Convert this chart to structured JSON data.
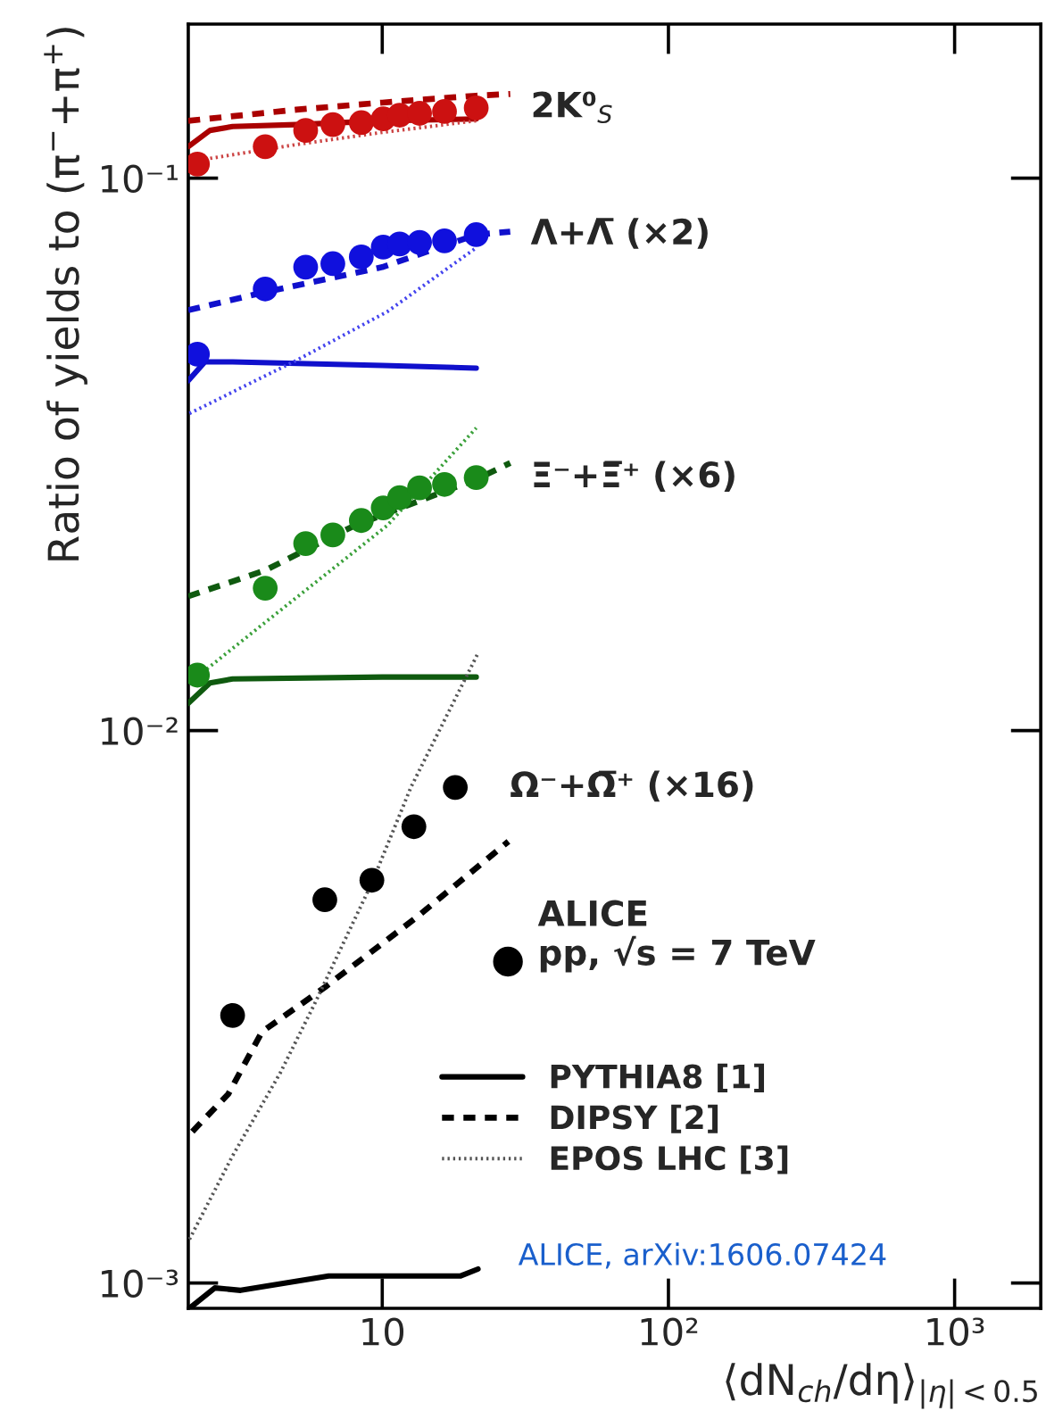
{
  "chart_data": {
    "type": "scatter",
    "xlabel": "⟨dN$_{ch}$/dη⟩$_{|η|<0.5}$",
    "ylabel": "Ratio of yields to (π$^{−}$+π$^{+}$)",
    "log": "xy",
    "xlim": [
      2.1,
      2000
    ],
    "ylim": [
      0.0009,
      0.19
    ],
    "xticks": [
      {
        "value": 10,
        "label": "10"
      },
      {
        "value": 100,
        "label": "10²"
      },
      {
        "value": 1000,
        "label": "10³"
      }
    ],
    "yticks": [
      {
        "value": 0.001,
        "label": "10⁻³"
      },
      {
        "value": 0.01,
        "label": "10⁻²"
      },
      {
        "value": 0.1,
        "label": "10⁻¹"
      }
    ],
    "grid": false,
    "legend": "bottom right",
    "annotations": [
      "ALICE\npp, √s = 7 TeV",
      "ALICE, arXiv:1606.07424"
    ],
    "series": [
      {
        "name": "2K⁰$_{S}$",
        "marker": "circle",
        "color": "#cc1111",
        "x": [
          2.26,
          3.9,
          5.4,
          6.72,
          8.45,
          10.08,
          11.5,
          13.5,
          16.5,
          21.3
        ],
        "values": [
          0.106,
          0.114,
          0.122,
          0.125,
          0.126,
          0.128,
          0.13,
          0.131,
          0.132,
          0.134
        ]
      },
      {
        "name": "Λ+Λ̅ (×2)",
        "marker": "circle",
        "color": "#1010dd",
        "x": [
          2.26,
          3.9,
          5.4,
          6.72,
          8.45,
          10.08,
          11.5,
          13.5,
          16.5,
          21.3
        ],
        "values": [
          0.048,
          0.063,
          0.069,
          0.07,
          0.072,
          0.075,
          0.076,
          0.0765,
          0.077,
          0.079
        ]
      },
      {
        "name": "Ξ⁻+Ξ̅⁺ (×6)",
        "marker": "circle",
        "color": "#1a8a1a",
        "x": [
          2.26,
          3.9,
          5.4,
          6.72,
          8.45,
          10.08,
          11.5,
          13.5,
          16.5,
          21.3
        ],
        "values": [
          0.0126,
          0.0181,
          0.0218,
          0.0226,
          0.024,
          0.0253,
          0.0264,
          0.0275,
          0.0279,
          0.0287
        ]
      },
      {
        "name": "Ω⁻+Ω̅⁺ (×16)",
        "marker": "circle",
        "color": "#000000",
        "x": [
          3.0,
          6.3,
          9.2,
          12.9,
          18.0
        ],
        "values": [
          0.00305,
          0.00494,
          0.00536,
          0.0067,
          0.00789
        ]
      },
      {
        "type": "line",
        "line_style": "solid",
        "color": "#aa0000",
        "x": [
          2.1,
          2.5,
          3,
          5,
          10,
          21.3
        ],
        "values": [
          0.114,
          0.122,
          0.124,
          0.125,
          0.127,
          0.128
        ]
      },
      {
        "type": "line",
        "line_style": "dashed",
        "color": "#aa0000",
        "x": [
          2.1,
          5,
          10,
          21.3,
          28
        ],
        "values": [
          0.127,
          0.133,
          0.137,
          0.141,
          0.142
        ]
      },
      {
        "type": "line",
        "line_style": "dotted",
        "color": "#cc4444",
        "x": [
          2.1,
          5,
          10,
          21.3
        ],
        "values": [
          0.107,
          0.115,
          0.121,
          0.127
        ]
      },
      {
        "type": "line",
        "line_style": "solid",
        "color": "#1010cc",
        "x": [
          2.1,
          2.4,
          3,
          10,
          21.3
        ],
        "values": [
          0.043,
          0.0465,
          0.0465,
          0.0458,
          0.0453
        ]
      },
      {
        "type": "line",
        "line_style": "dashed",
        "color": "#1010cc",
        "x": [
          2.1,
          3.9,
          10,
          21.3,
          28
        ],
        "values": [
          0.0577,
          0.0622,
          0.069,
          0.079,
          0.08
        ]
      },
      {
        "type": "line",
        "line_style": "dotted",
        "color": "#4444ee",
        "x": [
          2.12,
          5.1,
          10.4,
          21.3
        ],
        "values": [
          0.0375,
          0.047,
          0.0573,
          0.0748
        ]
      },
      {
        "type": "line",
        "line_style": "solid",
        "color": "#0f5a0f",
        "x": [
          2.1,
          2.5,
          3,
          10,
          21.3
        ],
        "values": [
          0.0112,
          0.0122,
          0.0124,
          0.0125,
          0.0125
        ]
      },
      {
        "type": "line",
        "line_style": "dashed",
        "color": "#0f5a0f",
        "x": [
          2.1,
          3.9,
          8,
          21.3,
          28
        ],
        "values": [
          0.0175,
          0.0195,
          0.0235,
          0.0285,
          0.0305
        ]
      },
      {
        "type": "line",
        "line_style": "dotted",
        "color": "#3aa03a",
        "x": [
          2.12,
          3.9,
          10.4,
          21.3
        ],
        "values": [
          0.0122,
          0.0157,
          0.0235,
          0.0353
        ]
      },
      {
        "type": "line",
        "name": "PYTHIA8 [1]",
        "line_style": "solid",
        "color": "#000000",
        "x": [
          2.12,
          2.6,
          3.2,
          6.5,
          18.8,
          21.6
        ],
        "values": [
          0.0009,
          0.00098,
          0.00097,
          0.00103,
          0.00103,
          0.00106
        ]
      },
      {
        "type": "line",
        "name": "DIPSY [2]",
        "line_style": "dashed",
        "color": "#000000",
        "x": [
          2.17,
          2.9,
          3.8,
          6.3,
          13.1,
          27.6
        ],
        "values": [
          0.00188,
          0.0022,
          0.00285,
          0.00343,
          0.00458,
          0.0063
        ]
      },
      {
        "type": "line",
        "name": "EPOS LHC [3]",
        "line_style": "dotted",
        "color": "#555555",
        "x": [
          2.12,
          3.0,
          4.4,
          5.8,
          9.2,
          12.6,
          21.6
        ],
        "values": [
          0.0012,
          0.0017,
          0.0024,
          0.0032,
          0.0053,
          0.0079,
          0.0138
        ]
      }
    ]
  }
}
